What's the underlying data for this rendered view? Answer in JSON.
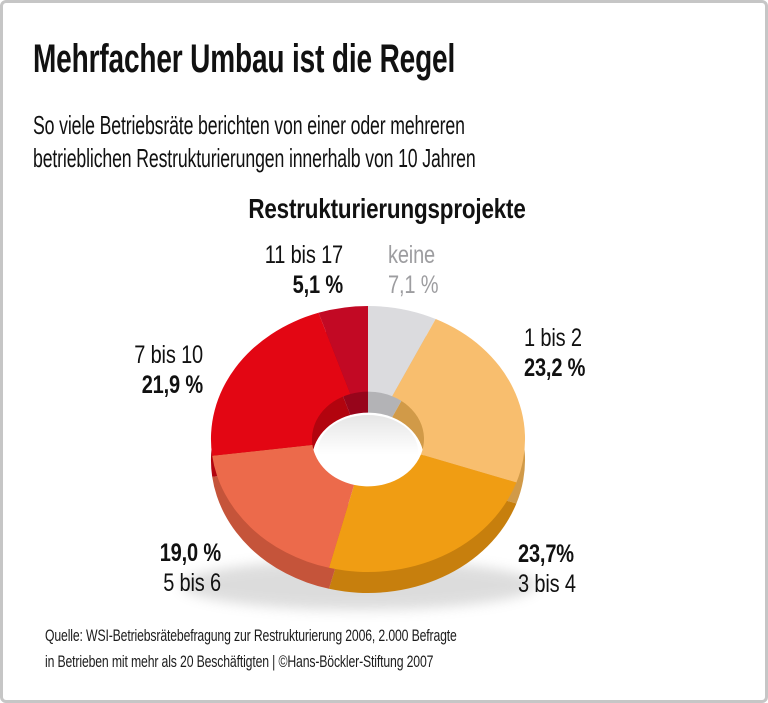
{
  "page": {
    "title": "Mehrfacher Umbau ist die Regel",
    "subtitle_line1": "So viele Betriebsräte berichten von einer oder mehreren",
    "subtitle_line2": "betrieblichen Restrukturierungen innerhalb von 10 Jahren",
    "source_line1": "Quelle: WSI-Betriebsrätebefragung zur Restrukturierung 2006, 2.000 Befragte",
    "source_line2": "in Betrieben mit mehr als 20 Beschäftigten | ©Hans-Böckler-Stiftung 2007"
  },
  "chart_data": {
    "type": "pie",
    "title": "Restrukturierungsprojekte",
    "donut": true,
    "style": "3d-extruded-donut",
    "unit": "%",
    "start_angle_deg": 0,
    "direction": "clockwise",
    "total": 100,
    "segments": [
      {
        "label": "keine",
        "value": 7.1,
        "value_text": "7,1 %",
        "color": "#dbdbde",
        "side_color": "#b3b3b6",
        "label_color": "#9d9da0"
      },
      {
        "label": "1 bis 2",
        "value": 23.2,
        "value_text": "23,2 %",
        "color": "#f8be6e",
        "side_color": "#d19a48",
        "label_color": "#111111"
      },
      {
        "label": "3 bis 4",
        "value": 23.7,
        "value_text": "23,7%",
        "color": "#f09d13",
        "side_color": "#c77f0d",
        "label_color": "#111111"
      },
      {
        "label": "5 bis 6",
        "value": 19.0,
        "value_text": "19,0 %",
        "color": "#ec6a4b",
        "side_color": "#c5543a",
        "label_color": "#111111"
      },
      {
        "label": "7 bis 10",
        "value": 21.9,
        "value_text": "21,9 %",
        "color": "#e30613",
        "side_color": "#b2040e",
        "label_color": "#111111"
      },
      {
        "label": "11 bis 17",
        "value": 5.1,
        "value_text": "5,1 %",
        "color": "#c20924",
        "side_color": "#97051b",
        "label_color": "#111111"
      }
    ]
  }
}
